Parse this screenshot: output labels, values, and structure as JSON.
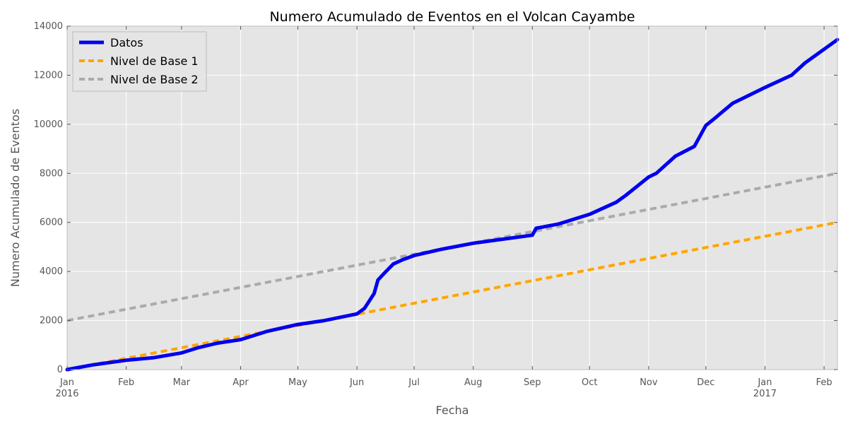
{
  "chart_data": {
    "type": "line",
    "title": "Numero Acumulado de Eventos en el Volcan Cayambe",
    "xlabel": "Fecha",
    "ylabel": "Numero Acumulado de Eventos",
    "xlim": [
      "2016-01-01",
      "2017-02-08"
    ],
    "ylim": [
      0,
      14000
    ],
    "y_ticks": [
      0,
      2000,
      4000,
      6000,
      8000,
      10000,
      12000,
      14000
    ],
    "x_ticks": [
      {
        "date": "2016-01-01",
        "label": "Jan",
        "sublabel": "2016"
      },
      {
        "date": "2016-02-01",
        "label": "Feb"
      },
      {
        "date": "2016-03-01",
        "label": "Mar"
      },
      {
        "date": "2016-04-01",
        "label": "Apr"
      },
      {
        "date": "2016-05-01",
        "label": "May"
      },
      {
        "date": "2016-06-01",
        "label": "Jun"
      },
      {
        "date": "2016-07-01",
        "label": "Jul"
      },
      {
        "date": "2016-08-01",
        "label": "Aug"
      },
      {
        "date": "2016-09-01",
        "label": "Sep"
      },
      {
        "date": "2016-10-01",
        "label": "Oct"
      },
      {
        "date": "2016-11-01",
        "label": "Nov"
      },
      {
        "date": "2016-12-01",
        "label": "Dec"
      },
      {
        "date": "2017-01-01",
        "label": "Jan",
        "sublabel": "2017"
      },
      {
        "date": "2017-02-01",
        "label": "Feb"
      }
    ],
    "grid": true,
    "legend_position": "top-left",
    "background_color": "#e5e5e5",
    "series": [
      {
        "name": "Datos",
        "color": "#0000ee",
        "style": "solid",
        "x": [
          "2016-01-01",
          "2016-01-15",
          "2016-02-01",
          "2016-02-15",
          "2016-03-01",
          "2016-03-10",
          "2016-03-20",
          "2016-04-01",
          "2016-04-15",
          "2016-05-01",
          "2016-05-15",
          "2016-06-01",
          "2016-06-05",
          "2016-06-10",
          "2016-06-12",
          "2016-06-15",
          "2016-06-20",
          "2016-06-25",
          "2016-07-01",
          "2016-07-15",
          "2016-08-01",
          "2016-08-15",
          "2016-09-01",
          "2016-09-03",
          "2016-09-15",
          "2016-10-01",
          "2016-10-15",
          "2016-10-20",
          "2016-11-01",
          "2016-11-05",
          "2016-11-15",
          "2016-11-25",
          "2016-12-01",
          "2016-12-05",
          "2016-12-15",
          "2017-01-01",
          "2017-01-15",
          "2017-01-22",
          "2017-02-08"
        ],
        "y": [
          0,
          200,
          380,
          480,
          680,
          900,
          1080,
          1220,
          1560,
          1840,
          2000,
          2270,
          2500,
          3100,
          3650,
          3900,
          4300,
          4480,
          4650,
          4900,
          5150,
          5300,
          5480,
          5760,
          5940,
          6330,
          6820,
          7100,
          7850,
          8000,
          8700,
          9100,
          9950,
          10200,
          10850,
          11500,
          12000,
          12500,
          13450
        ]
      },
      {
        "name": "Nivel de Base 1",
        "color": "#ffa500",
        "style": "dashed",
        "x": [
          "2016-01-01",
          "2017-02-08"
        ],
        "y": [
          0,
          6000
        ]
      },
      {
        "name": "Nivel de Base 2",
        "color": "#aaaaaa",
        "style": "dashed",
        "x": [
          "2016-01-01",
          "2017-02-08"
        ],
        "y": [
          2000,
          8000
        ]
      }
    ]
  }
}
